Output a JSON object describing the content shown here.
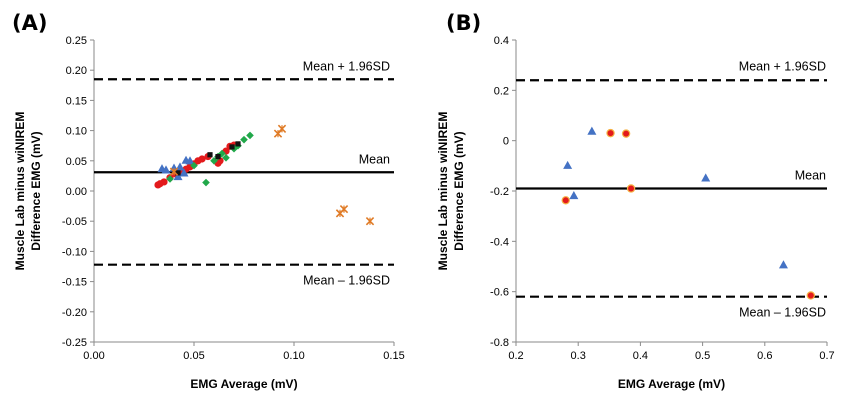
{
  "chart_data": [
    {
      "type": "scatter",
      "panel_label": "(A)",
      "xlabel": "EMG Average (mV)",
      "ylabel_lines": [
        "Muscle Lab minus wiNIREM",
        "Difference EMG (mV)"
      ],
      "xlim": [
        0.0,
        0.15
      ],
      "ylim": [
        -0.25,
        0.25
      ],
      "x_ticks": [
        "0.00",
        "0.05",
        "0.10",
        "0.15"
      ],
      "y_ticks": [
        "-0.25",
        "-0.20",
        "-0.15",
        "-0.10",
        "-0.05",
        "0.00",
        "0.05",
        "0.10",
        "0.15",
        "0.20",
        "0.25"
      ],
      "lines": [
        {
          "label": "Mean + 1.96SD",
          "y": 0.185,
          "style": "dashed"
        },
        {
          "label": "Mean",
          "y": 0.031,
          "style": "solid"
        },
        {
          "label": "Mean – 1.96SD",
          "y": -0.122,
          "style": "dashed"
        }
      ],
      "series": [
        {
          "marker": "circle",
          "color": "#e31a1c",
          "points": [
            [
              0.032,
              0.01
            ],
            [
              0.033,
              0.012
            ],
            [
              0.035,
              0.015
            ],
            [
              0.038,
              0.022
            ],
            [
              0.041,
              0.028
            ],
            [
              0.044,
              0.033
            ],
            [
              0.046,
              0.036
            ],
            [
              0.048,
              0.04
            ],
            [
              0.05,
              0.045
            ],
            [
              0.052,
              0.05
            ],
            [
              0.054,
              0.053
            ],
            [
              0.057,
              0.057
            ],
            [
              0.062,
              0.046
            ],
            [
              0.063,
              0.05
            ],
            [
              0.066,
              0.066
            ],
            [
              0.068,
              0.074
            ],
            [
              0.07,
              0.076
            ]
          ]
        },
        {
          "marker": "triangle",
          "color": "#4472c4",
          "points": [
            [
              0.034,
              0.037
            ],
            [
              0.036,
              0.035
            ],
            [
              0.04,
              0.038
            ],
            [
              0.043,
              0.04
            ],
            [
              0.045,
              0.03
            ],
            [
              0.046,
              0.051
            ],
            [
              0.048,
              0.05
            ],
            [
              0.042,
              0.024
            ]
          ]
        },
        {
          "marker": "diamond",
          "color": "#21a84a",
          "points": [
            [
              0.038,
              0.02
            ],
            [
              0.05,
              0.042
            ],
            [
              0.056,
              0.014
            ],
            [
              0.06,
              0.05
            ],
            [
              0.062,
              0.057
            ],
            [
              0.064,
              0.062
            ],
            [
              0.066,
              0.055
            ],
            [
              0.07,
              0.07
            ],
            [
              0.072,
              0.075
            ],
            [
              0.075,
              0.085
            ],
            [
              0.078,
              0.092
            ]
          ]
        },
        {
          "marker": "square",
          "color": "#111111",
          "points": [
            [
              0.042,
              0.03
            ],
            [
              0.058,
              0.06
            ],
            [
              0.062,
              0.057
            ],
            [
              0.069,
              0.073
            ],
            [
              0.072,
              0.078
            ]
          ]
        },
        {
          "marker": "star",
          "color": "#e07b26",
          "points": [
            [
              0.04,
              0.032
            ],
            [
              0.092,
              0.095
            ],
            [
              0.094,
              0.103
            ],
            [
              0.123,
              -0.037
            ],
            [
              0.125,
              -0.03
            ],
            [
              0.138,
              -0.05
            ]
          ]
        }
      ]
    },
    {
      "type": "scatter",
      "panel_label": "(B)",
      "xlabel": "EMG Average (mV)",
      "ylabel_lines": [
        "Muscle Lab minus wiNIREM",
        "Difference EMG (mV)"
      ],
      "xlim": [
        0.2,
        0.7
      ],
      "ylim": [
        -0.8,
        0.4
      ],
      "x_ticks": [
        "0.2",
        "0.3",
        "0.4",
        "0.5",
        "0.6",
        "0.7"
      ],
      "y_ticks": [
        "-0.8",
        "-0.6",
        "-0.4",
        "-0.2",
        "0",
        "0.2",
        "0.4"
      ],
      "lines": [
        {
          "label": "Mean + 1.96SD",
          "y": 0.24,
          "style": "dashed"
        },
        {
          "label": "Mean",
          "y": -0.19,
          "style": "solid"
        },
        {
          "label": "Mean – 1.96SD",
          "y": -0.62,
          "style": "dashed"
        }
      ],
      "series": [
        {
          "marker": "circle",
          "color": "#e31a1c",
          "points": [
            [
              0.28,
              -0.237
            ],
            [
              0.352,
              0.03
            ],
            [
              0.377,
              0.028
            ],
            [
              0.385,
              -0.19
            ],
            [
              0.674,
              -0.615
            ]
          ]
        },
        {
          "marker": "triangle",
          "color": "#4472c4",
          "points": [
            [
              0.283,
              -0.098
            ],
            [
              0.293,
              -0.218
            ],
            [
              0.322,
              0.038
            ],
            [
              0.505,
              -0.148
            ],
            [
              0.63,
              -0.493
            ]
          ]
        }
      ]
    }
  ]
}
